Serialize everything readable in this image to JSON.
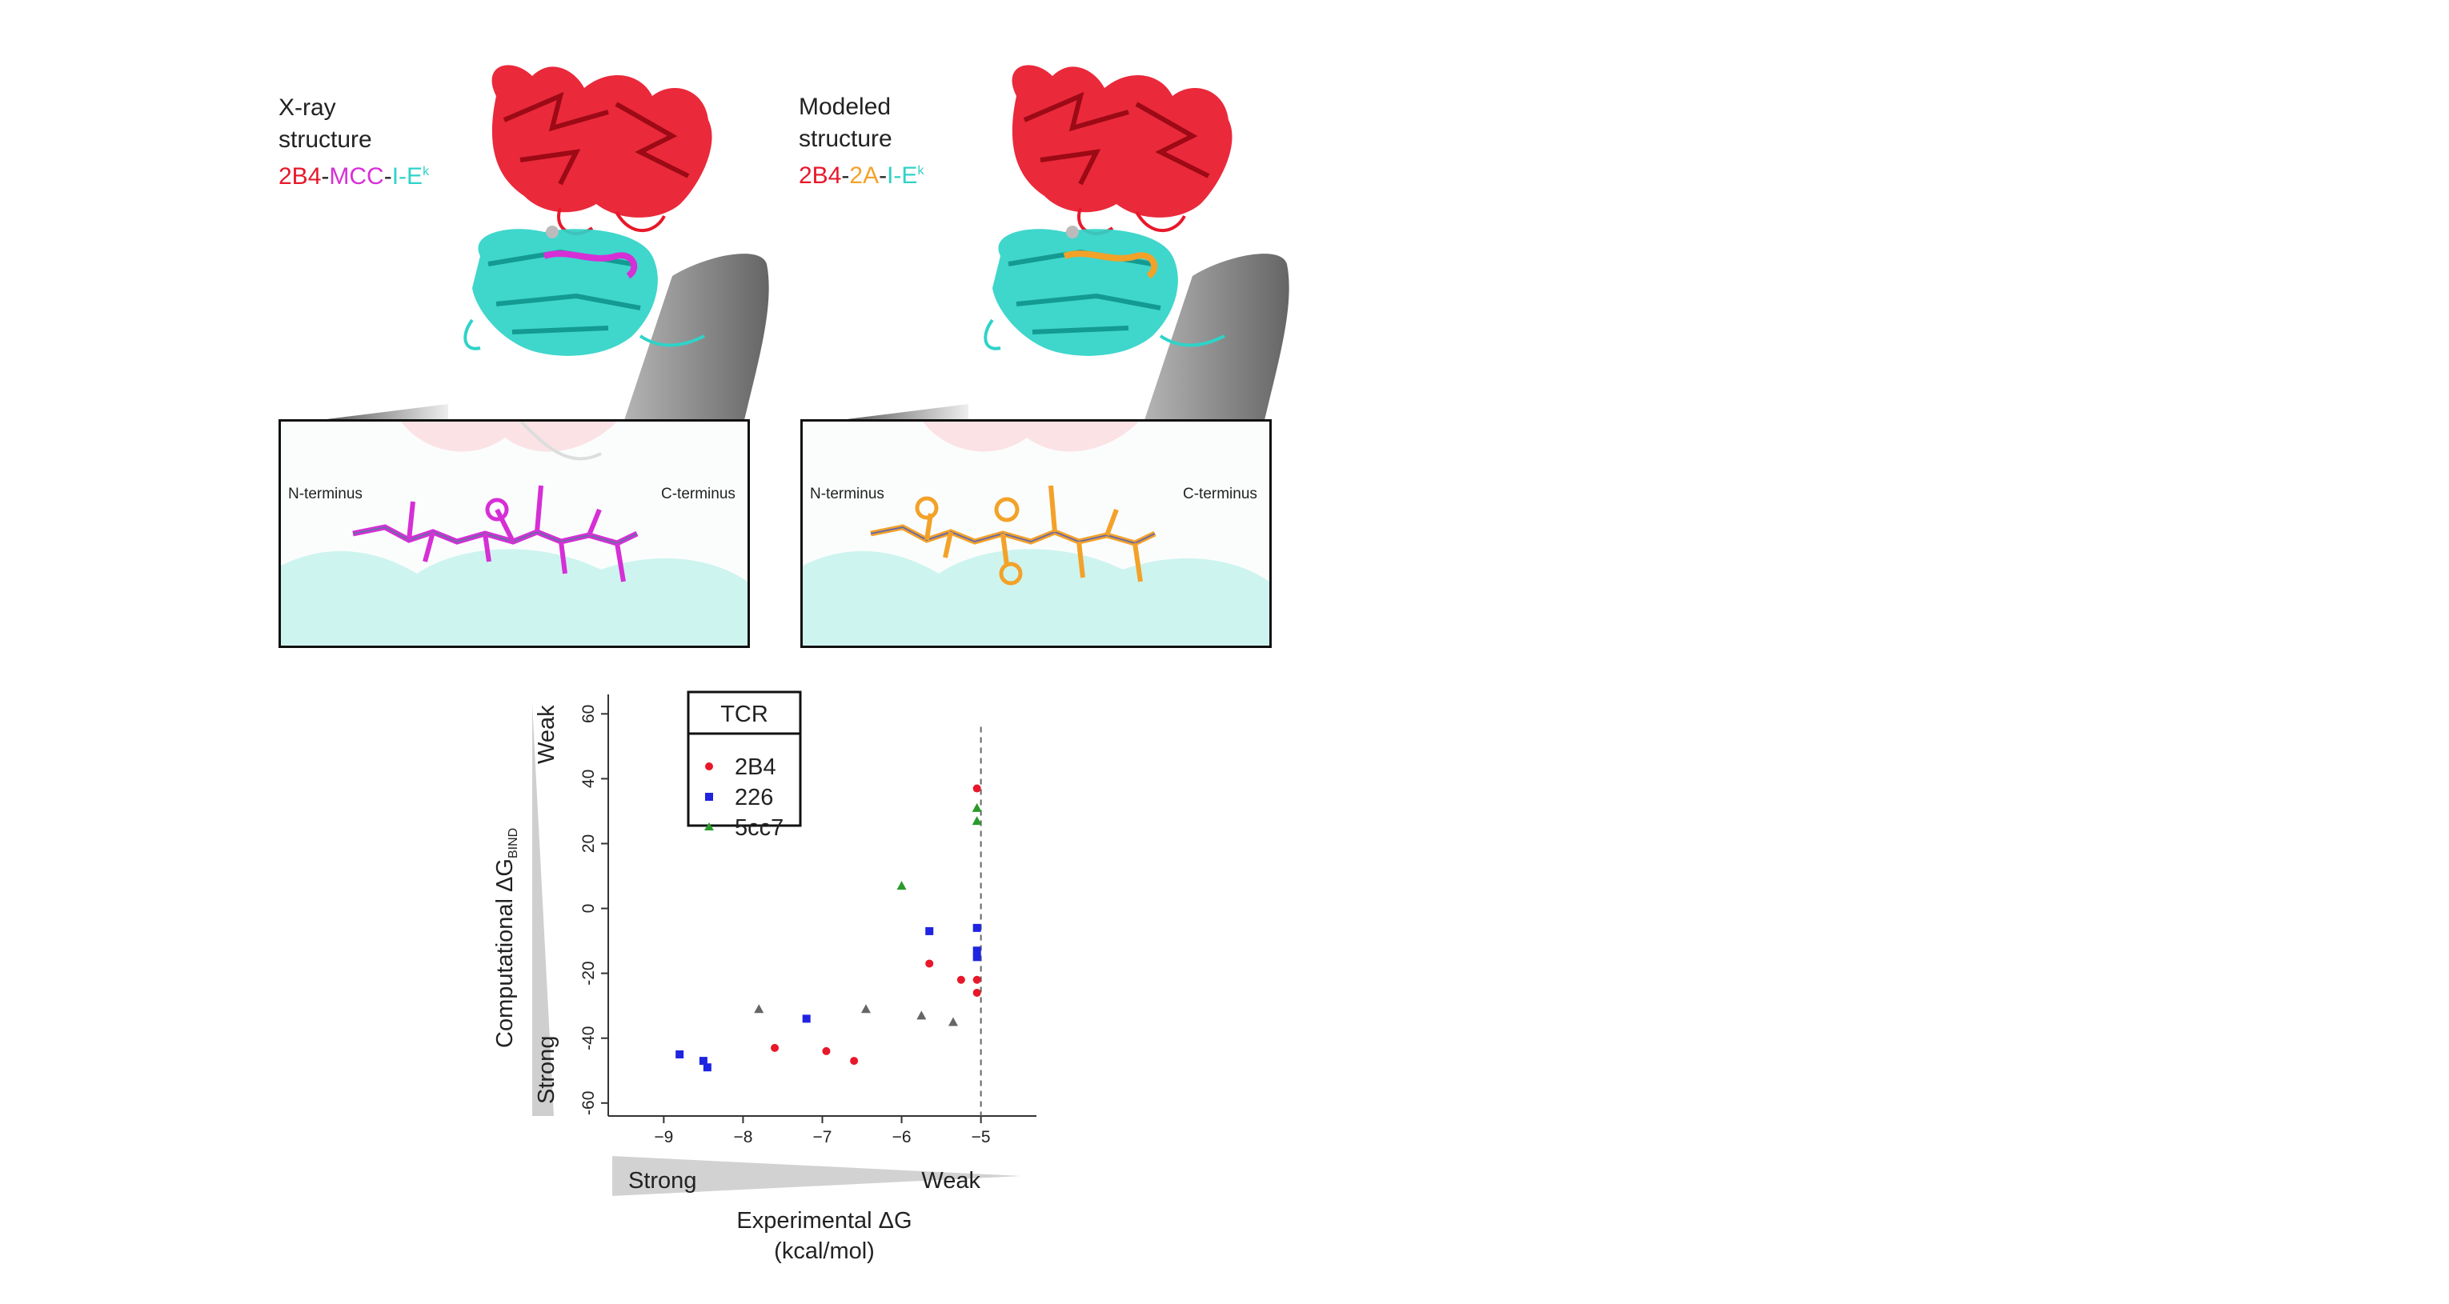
{
  "panels": [
    {
      "line1": "X-ray",
      "line2": "structure",
      "complex": {
        "tcr": "2B4",
        "sep1": "-",
        "peptide": "MCC",
        "sep2": "-",
        "mhc": "I-E",
        "mhc_sup": "k"
      },
      "n_terminus": "N-terminus",
      "c_terminus": "C-terminus",
      "peptide_color": "#d62fd6"
    },
    {
      "line1": "Modeled",
      "line2": "structure",
      "complex": {
        "tcr": "2B4",
        "sep1": "-",
        "peptide": "2A",
        "sep2": "-",
        "mhc": "I-E",
        "mhc_sup": "k"
      },
      "n_terminus": "N-terminus",
      "c_terminus": "C-terminus",
      "peptide_color": "#f3a229"
    }
  ],
  "colors": {
    "tcr": "#e8172a",
    "mhc": "#2fd3c8",
    "mcc_peptide": "#d62fd6",
    "a2_peptide": "#f3a229"
  },
  "chart_data": {
    "type": "scatter",
    "xlabel_line1": "Experimental ΔG",
    "xlabel_line2": "(kcal/mol)",
    "ylabel_main": "Computational ΔG",
    "ylabel_sub": "BIND",
    "x_range_words": {
      "left": "Strong",
      "right": "Weak"
    },
    "y_range_words": {
      "top": "Weak",
      "bottom": "Strong"
    },
    "xlim": [
      -9.7,
      -4.3
    ],
    "ylim": [
      -64,
      66
    ],
    "xticks": [
      -9,
      -8,
      -7,
      -6,
      -5
    ],
    "yticks": [
      60,
      40,
      20,
      0,
      -20,
      -40,
      -60
    ],
    "dashed_vline_x": -5,
    "legend": {
      "title": "TCR",
      "position": "top-left"
    },
    "series": [
      {
        "name": "2B4",
        "marker": "circle",
        "color": "#e8172a",
        "points": [
          [
            -7.6,
            -43
          ],
          [
            -6.95,
            -44
          ],
          [
            -6.6,
            -47
          ],
          [
            -5.65,
            -17
          ],
          [
            -5.25,
            -22
          ],
          [
            -5.05,
            -22
          ],
          [
            -5.05,
            -26
          ],
          [
            -5.05,
            37
          ]
        ]
      },
      {
        "name": "226",
        "marker": "square",
        "color": "#1f24e0",
        "points": [
          [
            -8.8,
            -45
          ],
          [
            -8.5,
            -47
          ],
          [
            -8.45,
            -49
          ],
          [
            -7.2,
            -34
          ],
          [
            -5.65,
            -7
          ],
          [
            -5.05,
            -6
          ],
          [
            -5.05,
            -13
          ],
          [
            -5.05,
            -15
          ]
        ]
      },
      {
        "name": "5cc7",
        "marker": "triangle",
        "color": "#2a9a2a",
        "points": [
          [
            -6.0,
            7
          ],
          [
            -5.05,
            31
          ],
          [
            -5.05,
            27
          ]
        ]
      },
      {
        "marker": "triangle",
        "color": "#666666",
        "points": [
          [
            -7.8,
            -31
          ],
          [
            -6.45,
            -31
          ],
          [
            -5.75,
            -33
          ],
          [
            -5.35,
            -35
          ]
        ]
      }
    ]
  }
}
